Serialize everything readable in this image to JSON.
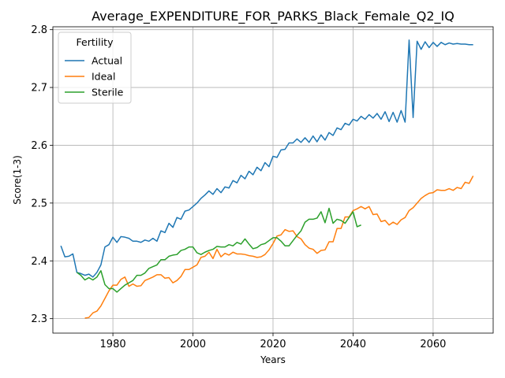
{
  "chart_data": {
    "type": "line",
    "title": "Average_EXPENDITURE_FOR_PARKS_Black_Female_Q2_IQ",
    "xlabel": "Years",
    "ylabel": "Score(1-3)",
    "xlim": [
      1965,
      2075
    ],
    "ylim": [
      2.275,
      2.805
    ],
    "xticks": [
      1980,
      2000,
      2020,
      2040,
      2060
    ],
    "yticks": [
      2.3,
      2.4,
      2.5,
      2.6,
      2.7,
      2.8
    ],
    "grid": true,
    "legend": {
      "title": "Fertility",
      "placement": "top-left"
    },
    "series": [
      {
        "name": "Actual",
        "color": "#1f77b4",
        "x": [
          1967,
          1968,
          1969,
          1970,
          1971,
          1972,
          1973,
          1974,
          1975,
          1976,
          1977,
          1978,
          1979,
          1980,
          1981,
          1982,
          1983,
          1984,
          1985,
          1986,
          1987,
          1988,
          1989,
          1990,
          1991,
          1992,
          1993,
          1994,
          1995,
          1996,
          1997,
          1998,
          1999,
          2000,
          2001,
          2002,
          2003,
          2004,
          2005,
          2006,
          2007,
          2008,
          2009,
          2010,
          2011,
          2012,
          2013,
          2014,
          2015,
          2016,
          2017,
          2018,
          2019,
          2020,
          2021,
          2022,
          2023,
          2024,
          2025,
          2026,
          2027,
          2028,
          2029,
          2030,
          2031,
          2032,
          2033,
          2034,
          2035,
          2036,
          2037,
          2038,
          2039,
          2040,
          2041,
          2042,
          2043,
          2044,
          2045,
          2046,
          2047,
          2048,
          2049,
          2050,
          2051,
          2052,
          2053,
          2054,
          2055,
          2056,
          2057,
          2058,
          2059,
          2060,
          2061,
          2062,
          2063,
          2064,
          2065,
          2066,
          2067,
          2068,
          2069,
          2070
        ],
        "values": [
          2.426,
          2.407,
          2.408,
          2.412,
          2.38,
          2.378,
          2.375,
          2.377,
          2.372,
          2.38,
          2.393,
          2.424,
          2.428,
          2.441,
          2.432,
          2.442,
          2.441,
          2.439,
          2.434,
          2.434,
          2.432,
          2.436,
          2.434,
          2.439,
          2.434,
          2.452,
          2.449,
          2.465,
          2.458,
          2.475,
          2.472,
          2.486,
          2.488,
          2.494,
          2.5,
          2.508,
          2.514,
          2.521,
          2.515,
          2.525,
          2.518,
          2.528,
          2.526,
          2.539,
          2.535,
          2.548,
          2.542,
          2.555,
          2.549,
          2.562,
          2.556,
          2.57,
          2.563,
          2.581,
          2.579,
          2.592,
          2.593,
          2.604,
          2.604,
          2.611,
          2.605,
          2.613,
          2.605,
          2.616,
          2.606,
          2.618,
          2.609,
          2.622,
          2.617,
          2.63,
          2.627,
          2.638,
          2.635,
          2.645,
          2.642,
          2.65,
          2.645,
          2.653,
          2.647,
          2.655,
          2.645,
          2.658,
          2.641,
          2.657,
          2.64,
          2.66,
          2.64,
          2.782,
          2.648,
          2.78,
          2.766,
          2.779,
          2.769,
          2.778,
          2.771,
          2.778,
          2.774,
          2.777,
          2.775,
          2.776,
          2.775,
          2.775,
          2.774,
          2.774
        ]
      },
      {
        "name": "Ideal",
        "color": "#ff7f0e",
        "x": [
          1973,
          1974,
          1975,
          1976,
          1977,
          1978,
          1979,
          1980,
          1981,
          1982,
          1983,
          1984,
          1985,
          1986,
          1987,
          1988,
          1989,
          1990,
          1991,
          1992,
          1993,
          1994,
          1995,
          1996,
          1997,
          1998,
          1999,
          2000,
          2001,
          2002,
          2003,
          2004,
          2005,
          2006,
          2007,
          2008,
          2009,
          2010,
          2011,
          2012,
          2013,
          2014,
          2015,
          2016,
          2017,
          2018,
          2019,
          2020,
          2021,
          2022,
          2023,
          2024,
          2025,
          2026,
          2027,
          2028,
          2029,
          2030,
          2031,
          2032,
          2033,
          2034,
          2035,
          2036,
          2037,
          2038,
          2039,
          2040,
          2041,
          2042,
          2043,
          2044,
          2045,
          2046,
          2047,
          2048,
          2049,
          2050,
          2051,
          2052,
          2053,
          2054,
          2055,
          2056,
          2057,
          2058,
          2059,
          2060,
          2061,
          2062,
          2063,
          2064,
          2065,
          2066,
          2067,
          2068,
          2069,
          2070
        ],
        "values": [
          2.301,
          2.302,
          2.31,
          2.313,
          2.322,
          2.335,
          2.348,
          2.358,
          2.358,
          2.368,
          2.372,
          2.356,
          2.36,
          2.356,
          2.357,
          2.366,
          2.369,
          2.372,
          2.376,
          2.376,
          2.37,
          2.371,
          2.362,
          2.366,
          2.373,
          2.385,
          2.385,
          2.389,
          2.393,
          2.406,
          2.408,
          2.415,
          2.404,
          2.42,
          2.407,
          2.413,
          2.41,
          2.415,
          2.412,
          2.412,
          2.411,
          2.409,
          2.408,
          2.406,
          2.407,
          2.411,
          2.419,
          2.43,
          2.443,
          2.445,
          2.454,
          2.451,
          2.452,
          2.442,
          2.438,
          2.428,
          2.422,
          2.42,
          2.413,
          2.418,
          2.419,
          2.433,
          2.433,
          2.456,
          2.456,
          2.476,
          2.476,
          2.487,
          2.49,
          2.494,
          2.49,
          2.494,
          2.48,
          2.481,
          2.468,
          2.47,
          2.462,
          2.467,
          2.463,
          2.471,
          2.475,
          2.487,
          2.492,
          2.5,
          2.508,
          2.513,
          2.517,
          2.518,
          2.523,
          2.522,
          2.522,
          2.525,
          2.522,
          2.527,
          2.525,
          2.536,
          2.534,
          2.547
        ]
      },
      {
        "name": "Sterile",
        "color": "#2ca02c",
        "x": [
          1971,
          1972,
          1973,
          1974,
          1975,
          1976,
          1977,
          1978,
          1979,
          1980,
          1981,
          1982,
          1983,
          1984,
          1985,
          1986,
          1987,
          1988,
          1989,
          1990,
          1991,
          1992,
          1993,
          1994,
          1995,
          1996,
          1997,
          1998,
          1999,
          2000,
          2001,
          2002,
          2003,
          2004,
          2005,
          2006,
          2007,
          2008,
          2009,
          2010,
          2011,
          2012,
          2013,
          2014,
          2015,
          2016,
          2017,
          2018,
          2019,
          2020,
          2021,
          2022,
          2023,
          2024,
          2025,
          2026,
          2027,
          2028,
          2029,
          2030,
          2031,
          2032,
          2033,
          2034,
          2035,
          2036,
          2037,
          2038,
          2039,
          2040,
          2041,
          2042
        ],
        "values": [
          2.38,
          2.375,
          2.367,
          2.371,
          2.367,
          2.372,
          2.383,
          2.359,
          2.352,
          2.352,
          2.346,
          2.352,
          2.358,
          2.362,
          2.366,
          2.375,
          2.375,
          2.379,
          2.387,
          2.39,
          2.393,
          2.402,
          2.402,
          2.408,
          2.41,
          2.411,
          2.418,
          2.42,
          2.424,
          2.424,
          2.414,
          2.411,
          2.415,
          2.418,
          2.42,
          2.425,
          2.424,
          2.424,
          2.428,
          2.426,
          2.432,
          2.429,
          2.438,
          2.429,
          2.421,
          2.423,
          2.428,
          2.43,
          2.435,
          2.44,
          2.44,
          2.434,
          2.426,
          2.426,
          2.435,
          2.444,
          2.452,
          2.467,
          2.472,
          2.472,
          2.474,
          2.485,
          2.466,
          2.491,
          2.465,
          2.472,
          2.47,
          2.465,
          2.475,
          2.485,
          2.459,
          2.462
        ]
      }
    ]
  }
}
